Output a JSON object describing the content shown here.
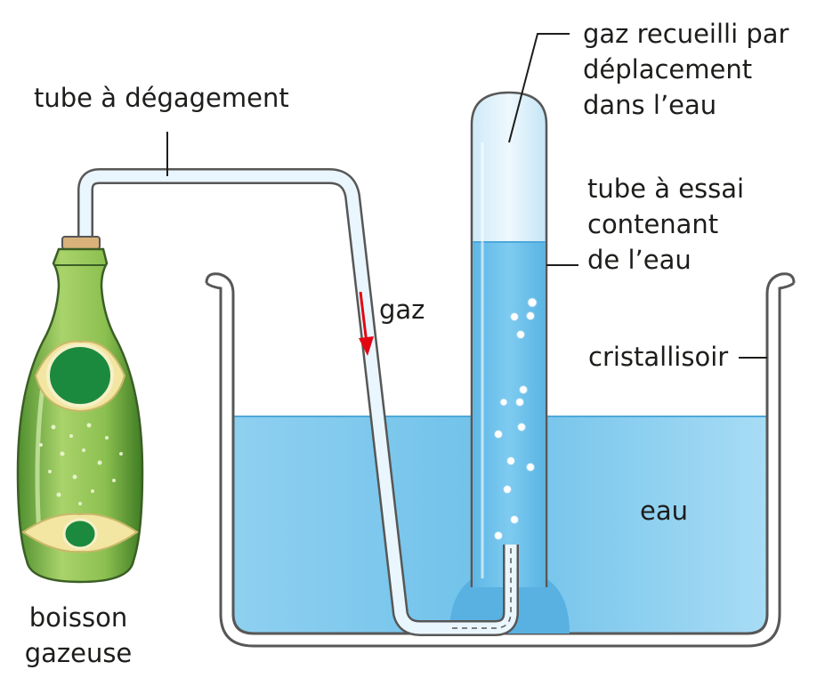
{
  "labels": {
    "tube_degagement": "tube à dégagement",
    "gaz": "gaz",
    "gaz_recueilli": [
      "gaz recueilli par",
      "déplacement",
      "dans l’eau"
    ],
    "tube_essai": [
      "tube à essai",
      "contenant",
      "de l’eau"
    ],
    "cristallisoir": "cristallisoir",
    "eau": "eau",
    "boisson": [
      "boisson",
      "gazeuse"
    ]
  },
  "colors": {
    "water": "#7cc8ec",
    "water_light": "#a9dcf4",
    "glass_outline": "#575756",
    "tube_gas": "#e8f5fc",
    "bottle_green": "#7ab648",
    "label_green": "#1b8a3e",
    "cork": "#d8b27a",
    "arrow_red": "#e30613"
  }
}
